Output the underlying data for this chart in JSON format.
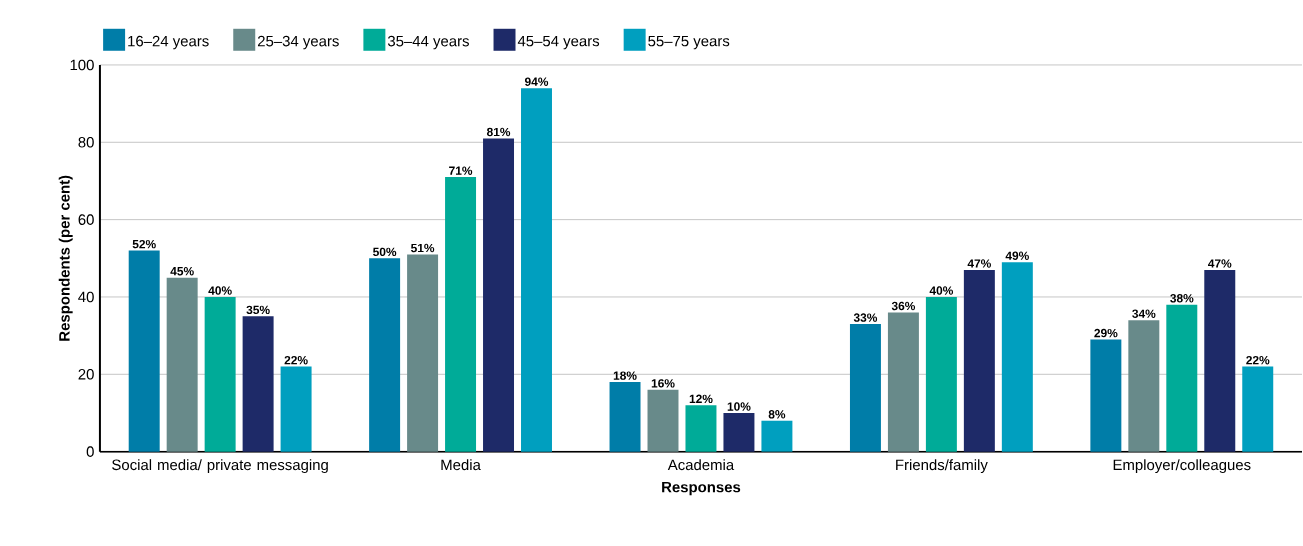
{
  "chart_data": {
    "type": "bar",
    "xlabel": "Responses",
    "ylabel": "Respondents (per cent)",
    "categories": [
      "Social media/ private messaging",
      "Media",
      "Academia",
      "Friends/family",
      "Employer/colleagues"
    ],
    "series": [
      {
        "name": "16–24 years",
        "color": "#007da8",
        "values": [
          52,
          50,
          18,
          33,
          29
        ],
        "value_labels": [
          "52%",
          "50%",
          "18%",
          "33%",
          "29%"
        ]
      },
      {
        "name": "25–34 years",
        "color": "#688a8a",
        "values": [
          45,
          51,
          16,
          36,
          34
        ],
        "value_labels": [
          "45%",
          "51%",
          "16%",
          "36%",
          "34%"
        ]
      },
      {
        "name": "35–44 years",
        "color": "#00ab98",
        "values": [
          40,
          71,
          12,
          40,
          38
        ],
        "value_labels": [
          "40%",
          "71%",
          "12%",
          "40%",
          "38%"
        ]
      },
      {
        "name": "45–54 years",
        "color": "#1e2a68",
        "values": [
          35,
          81,
          10,
          47,
          47
        ],
        "value_labels": [
          "35%",
          "81%",
          "10%",
          "47%",
          "47%"
        ]
      },
      {
        "name": "55–75 years",
        "color": "#009fbf",
        "values": [
          22,
          94,
          8,
          49,
          22
        ],
        "value_labels": [
          "22%",
          "94%",
          "8%",
          "49%",
          "22%"
        ]
      }
    ],
    "ylim": [
      0,
      100
    ],
    "yticks": [
      0,
      20,
      40,
      60,
      80,
      100
    ],
    "grid": "y",
    "legend": "top left"
  }
}
